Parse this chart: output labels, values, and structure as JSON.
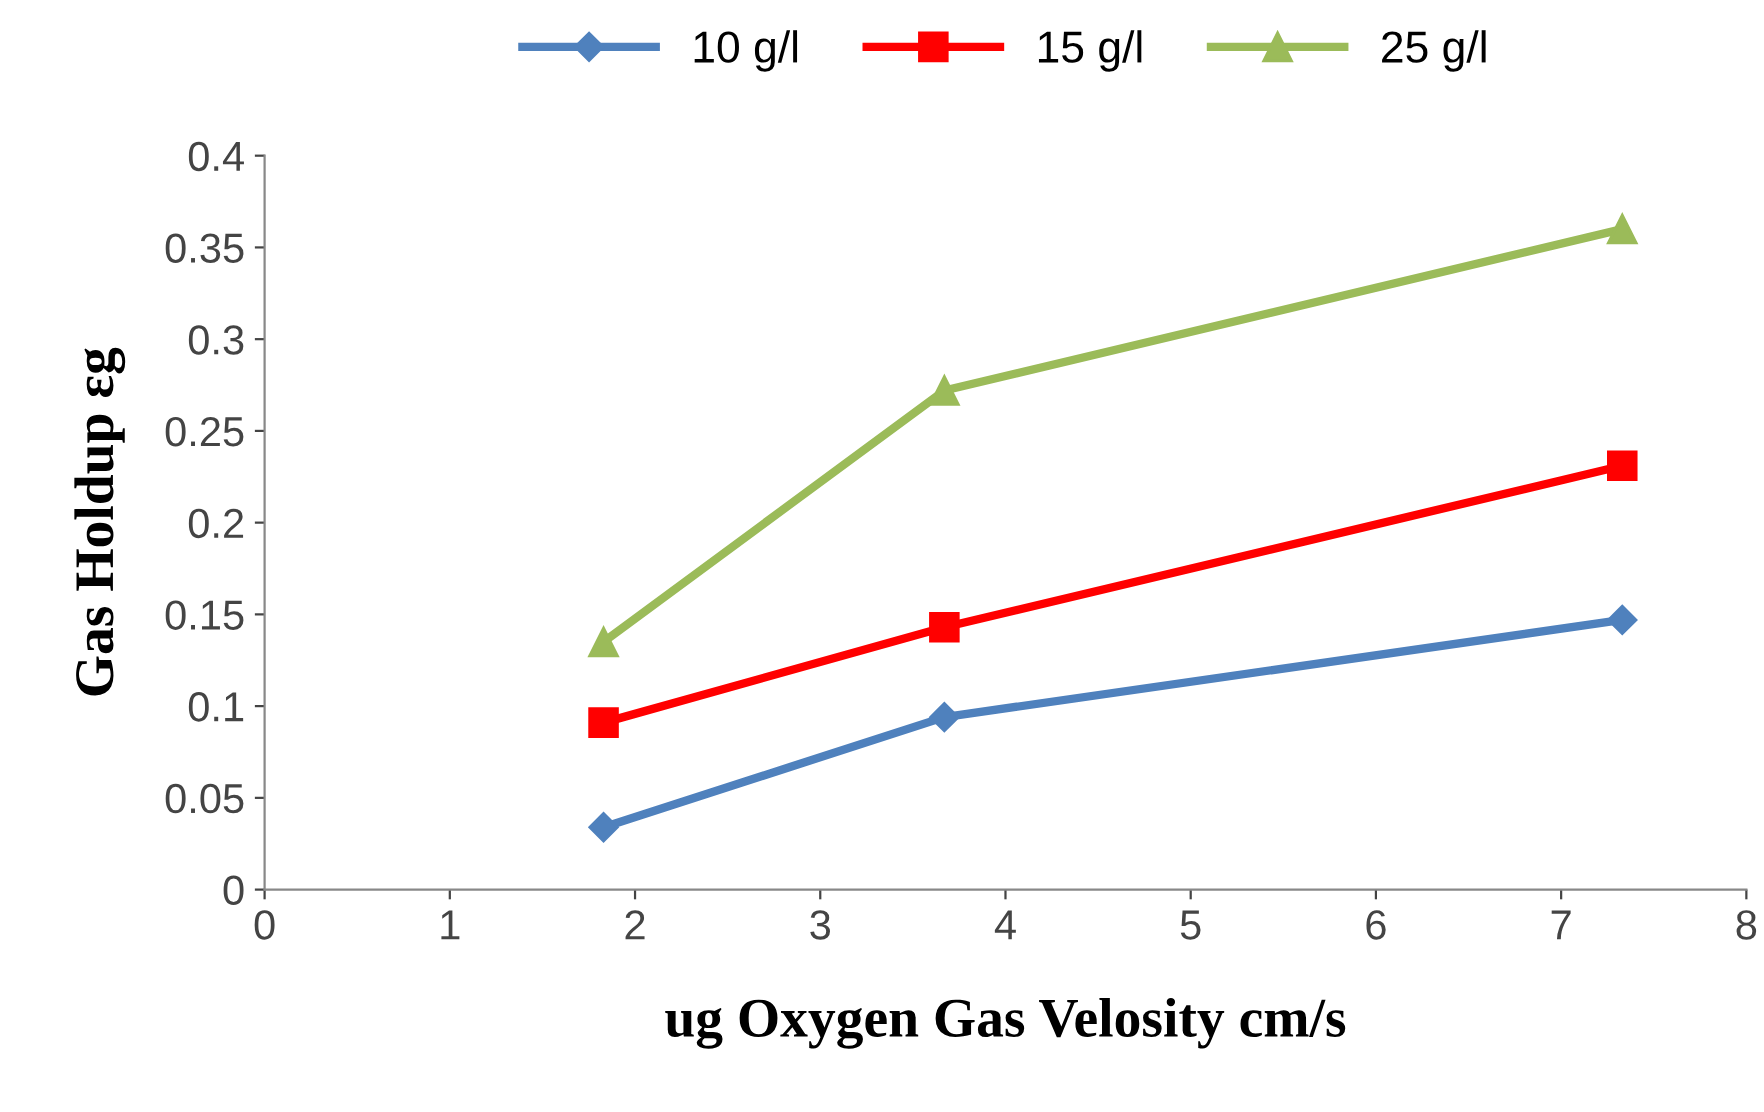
{
  "chart_data": {
    "type": "line",
    "xlabel": "ug Oxygen Gas Velosity cm/s",
    "ylabel": "Gas Holdup εg",
    "x": [
      1.83,
      3.67,
      7.33
    ],
    "series": [
      {
        "name": "10 g/l",
        "color": "#4f81bd",
        "marker": "diamond",
        "values": [
          0.034,
          0.094,
          0.147
        ]
      },
      {
        "name": "15 g/l",
        "color": "#ff0000",
        "marker": "square",
        "values": [
          0.091,
          0.143,
          0.231
        ]
      },
      {
        "name": "25 g/l",
        "color": "#9bbb59",
        "marker": "triangle",
        "values": [
          0.135,
          0.272,
          0.36
        ]
      }
    ],
    "xlim": [
      0,
      8
    ],
    "xticks": [
      0,
      1,
      2,
      3,
      4,
      5,
      6,
      7,
      8
    ],
    "ylim": [
      0,
      0.4
    ],
    "yticks": [
      0,
      0.05,
      0.1,
      0.15,
      0.2,
      0.25,
      0.3,
      0.35,
      0.4
    ],
    "grid": false,
    "legend": "top"
  }
}
